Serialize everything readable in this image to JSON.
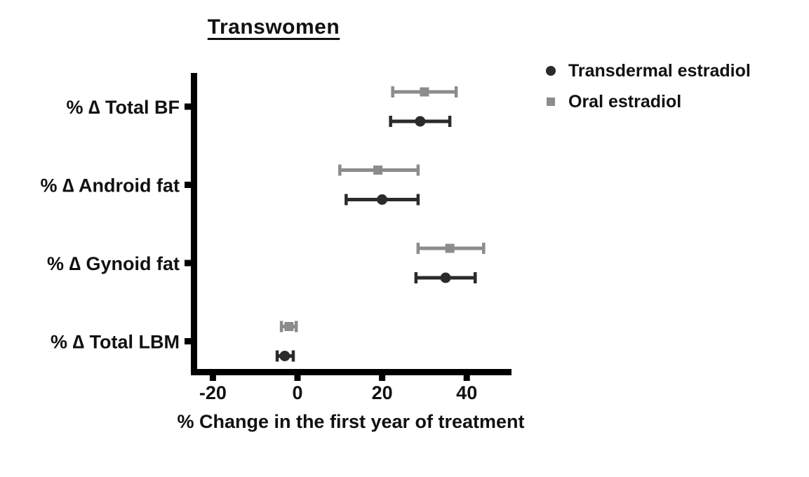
{
  "figure": {
    "background": "#ffffff",
    "text_color": "#111111"
  },
  "chart_data": {
    "type": "scatter",
    "variant": "horizontal-forest-plot-with-error-bars",
    "title": "Transwomen",
    "xlabel": "% Change in the first year of treatment",
    "x_ticks": [
      -20,
      0,
      20,
      40
    ],
    "xlim": [
      -25.5,
      50.5
    ],
    "grid": "off",
    "legend_position": "top-right-outside",
    "axis_color": "#000000",
    "categories": [
      "% ∆ Total BF",
      "% ∆ Android fat",
      "% ∆ Gynoid fat",
      "% ∆ Total LBM"
    ],
    "series": [
      {
        "name": "Transdermal estradiol",
        "marker": "circle",
        "color": "#2b2b2b",
        "row_offset": "below",
        "points": [
          {
            "category": "% ∆ Total BF",
            "mean": 29,
            "ci_low": 22,
            "ci_high": 36
          },
          {
            "category": "% ∆ Android fat",
            "mean": 20,
            "ci_low": 11.5,
            "ci_high": 28.5
          },
          {
            "category": "% ∆ Gynoid fat",
            "mean": 35,
            "ci_low": 28,
            "ci_high": 42
          },
          {
            "category": "% ∆ Total LBM",
            "mean": -3,
            "ci_low": -4.8,
            "ci_high": -1
          }
        ]
      },
      {
        "name": "Oral estradiol",
        "marker": "square",
        "color": "#8c8c8c",
        "row_offset": "above",
        "points": [
          {
            "category": "% ∆ Total BF",
            "mean": 30,
            "ci_low": 22.5,
            "ci_high": 37.5
          },
          {
            "category": "% ∆ Android fat",
            "mean": 19,
            "ci_low": 10,
            "ci_high": 28.5
          },
          {
            "category": "% ∆ Gynoid fat",
            "mean": 36,
            "ci_low": 28.5,
            "ci_high": 44
          },
          {
            "category": "% ∆ Total LBM",
            "mean": -2,
            "ci_low": -3.8,
            "ci_high": -0.3
          }
        ]
      }
    ]
  }
}
